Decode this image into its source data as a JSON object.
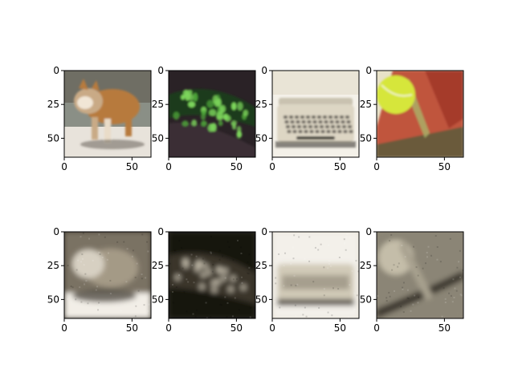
{
  "figure": {
    "layout": {
      "rows": 2,
      "cols": 4
    }
  },
  "chart_data": [
    {
      "type": "image",
      "row": 1,
      "col": 1,
      "content": "dog-photo",
      "xlim": [
        0,
        64
      ],
      "ylim": [
        64,
        0
      ],
      "xticks": [
        0,
        50
      ],
      "yticks": [
        0,
        25,
        50
      ],
      "palette": [
        "#8a8f86",
        "#c9aa86",
        "#b77a3c",
        "#5a544a",
        "#e8e3db"
      ]
    },
    {
      "type": "image",
      "row": 1,
      "col": 2,
      "content": "fluorescent-green-cells",
      "xlim": [
        0,
        64
      ],
      "ylim": [
        64,
        0
      ],
      "xticks": [
        0,
        50
      ],
      "yticks": [
        0,
        25,
        50
      ],
      "palette": [
        "#2a2226",
        "#3b2f34",
        "#4fa83a",
        "#7dd65c",
        "#1e3b1b"
      ]
    },
    {
      "type": "image",
      "row": 1,
      "col": 3,
      "content": "typewriter-photo",
      "xlim": [
        0,
        64
      ],
      "ylim": [
        64,
        0
      ],
      "xticks": [
        0,
        50
      ],
      "yticks": [
        0,
        25,
        50
      ],
      "palette": [
        "#e9e4d6",
        "#f4f1e9",
        "#6a665d",
        "#3a3832",
        "#c9c2b0"
      ]
    },
    {
      "type": "image",
      "row": 1,
      "col": 4,
      "content": "tennis-ball-photo",
      "xlim": [
        0,
        64
      ],
      "ylim": [
        64,
        0
      ],
      "xticks": [
        0,
        50
      ],
      "yticks": [
        0,
        25,
        50
      ],
      "palette": [
        "#a53b2b",
        "#c0553d",
        "#d6e63a",
        "#6b5a3a",
        "#e8e2c8"
      ]
    },
    {
      "type": "image",
      "row": 2,
      "col": 1,
      "content": "dog-reconstruction-sepia",
      "xlim": [
        0,
        64
      ],
      "ylim": [
        64,
        0
      ],
      "xticks": [
        0,
        50
      ],
      "yticks": [
        0,
        25,
        50
      ],
      "palette": [
        "#3f3a31",
        "#7a7263",
        "#d7d0c2",
        "#a49a86",
        "#f2eee7"
      ]
    },
    {
      "type": "image",
      "row": 2,
      "col": 2,
      "content": "cells-reconstruction-sepia",
      "xlim": [
        0,
        64
      ],
      "ylim": [
        64,
        0
      ],
      "xticks": [
        0,
        50
      ],
      "yticks": [
        0,
        25,
        50
      ],
      "palette": [
        "#2a2720",
        "#3a352c",
        "#8b8270",
        "#c9c2b0",
        "#151410"
      ]
    },
    {
      "type": "image",
      "row": 2,
      "col": 3,
      "content": "typewriter-reconstruction-sepia",
      "xlim": [
        0,
        64
      ],
      "ylim": [
        64,
        0
      ],
      "xticks": [
        0,
        50
      ],
      "yticks": [
        0,
        25,
        50
      ],
      "palette": [
        "#e8e3d7",
        "#f3f0ea",
        "#a69f8e",
        "#5b574e",
        "#d1cab8"
      ]
    },
    {
      "type": "image",
      "row": 2,
      "col": 4,
      "content": "tennis-ball-reconstruction-sepia",
      "xlim": [
        0,
        64
      ],
      "ylim": [
        64,
        0
      ],
      "xticks": [
        0,
        50
      ],
      "yticks": [
        0,
        25,
        50
      ],
      "palette": [
        "#8b8576",
        "#5e594f",
        "#a8a18f",
        "#3f3b33",
        "#c4bda9"
      ]
    }
  ]
}
